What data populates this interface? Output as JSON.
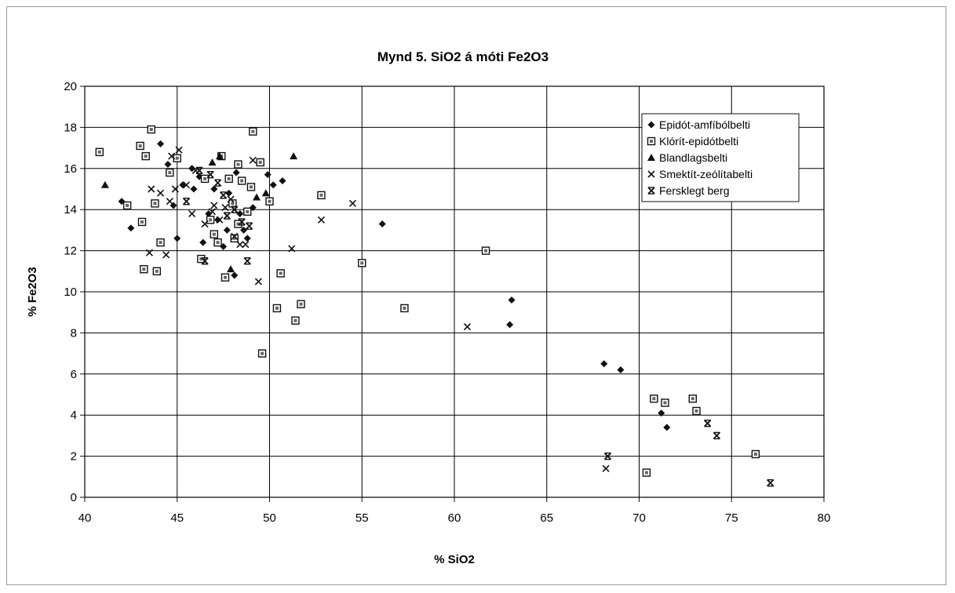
{
  "colors": {
    "ink": "#111111",
    "grid": "#000000",
    "background": "#ffffff"
  },
  "chart_data": {
    "type": "scatter",
    "title": "Mynd 5. SiO2 á móti Fe2O3",
    "xlabel": "% SiO2",
    "ylabel": "% Fe2O3",
    "xlim": [
      40,
      80
    ],
    "ylim": [
      0,
      20
    ],
    "xticks": [
      40,
      45,
      50,
      55,
      60,
      65,
      70,
      75,
      80
    ],
    "yticks": [
      0,
      2,
      4,
      6,
      8,
      10,
      12,
      14,
      16,
      18,
      20
    ],
    "grid": true,
    "legend_position": "top-right",
    "series": [
      {
        "name": "Epidót-amfíbólbelti",
        "marker": "diamond",
        "points": [
          [
            42.0,
            14.4
          ],
          [
            42.5,
            13.1
          ],
          [
            44.1,
            17.2
          ],
          [
            44.5,
            16.2
          ],
          [
            44.8,
            14.2
          ],
          [
            45.0,
            12.6
          ],
          [
            45.3,
            15.2
          ],
          [
            45.8,
            16.0
          ],
          [
            45.9,
            15.0
          ],
          [
            46.2,
            15.6
          ],
          [
            46.4,
            12.4
          ],
          [
            46.7,
            13.8
          ],
          [
            47.0,
            15.0
          ],
          [
            47.2,
            13.5
          ],
          [
            47.5,
            12.2
          ],
          [
            47.7,
            13.0
          ],
          [
            47.8,
            14.8
          ],
          [
            48.1,
            10.8
          ],
          [
            48.2,
            15.8
          ],
          [
            48.4,
            13.8
          ],
          [
            48.6,
            13.0
          ],
          [
            48.8,
            12.6
          ],
          [
            49.1,
            14.1
          ],
          [
            49.9,
            15.7
          ],
          [
            50.2,
            15.2
          ],
          [
            50.7,
            15.4
          ],
          [
            56.1,
            13.3
          ],
          [
            63.0,
            8.4
          ],
          [
            63.1,
            9.6
          ],
          [
            68.1,
            6.5
          ],
          [
            69.0,
            6.2
          ],
          [
            71.2,
            4.1
          ],
          [
            71.5,
            3.4
          ]
        ]
      },
      {
        "name": "Klórít-epidótbelti",
        "marker": "square",
        "points": [
          [
            40.8,
            16.8
          ],
          [
            42.3,
            14.2
          ],
          [
            43.0,
            17.1
          ],
          [
            43.1,
            13.4
          ],
          [
            43.2,
            11.1
          ],
          [
            43.3,
            16.6
          ],
          [
            43.6,
            17.9
          ],
          [
            43.8,
            14.3
          ],
          [
            43.9,
            11.0
          ],
          [
            44.1,
            12.4
          ],
          [
            44.6,
            15.8
          ],
          [
            45.0,
            16.5
          ],
          [
            46.3,
            11.6
          ],
          [
            46.5,
            15.5
          ],
          [
            46.8,
            13.5
          ],
          [
            47.0,
            12.8
          ],
          [
            47.2,
            12.4
          ],
          [
            47.4,
            16.6
          ],
          [
            47.6,
            10.7
          ],
          [
            47.8,
            15.5
          ],
          [
            48.0,
            14.3
          ],
          [
            48.1,
            12.6
          ],
          [
            48.3,
            13.3
          ],
          [
            48.3,
            16.2
          ],
          [
            48.5,
            15.4
          ],
          [
            48.8,
            13.9
          ],
          [
            49.0,
            15.1
          ],
          [
            49.1,
            17.8
          ],
          [
            49.5,
            16.3
          ],
          [
            49.6,
            7.0
          ],
          [
            50.0,
            14.4
          ],
          [
            50.4,
            9.2
          ],
          [
            50.6,
            10.9
          ],
          [
            51.4,
            8.6
          ],
          [
            51.7,
            9.4
          ],
          [
            52.8,
            14.7
          ],
          [
            55.0,
            11.4
          ],
          [
            57.3,
            9.2
          ],
          [
            61.7,
            12.0
          ],
          [
            70.4,
            1.2
          ],
          [
            70.8,
            4.8
          ],
          [
            71.4,
            4.6
          ],
          [
            72.9,
            4.8
          ],
          [
            73.1,
            4.2
          ],
          [
            76.3,
            2.1
          ]
        ]
      },
      {
        "name": "Blandlagsbelti",
        "marker": "triangle",
        "points": [
          [
            41.1,
            15.2
          ],
          [
            46.9,
            16.3
          ],
          [
            47.3,
            16.6
          ],
          [
            47.9,
            11.1
          ],
          [
            49.3,
            14.6
          ],
          [
            49.8,
            14.8
          ],
          [
            51.3,
            16.6
          ]
        ]
      },
      {
        "name": "Smektít-zeólítabelti",
        "marker": "x",
        "points": [
          [
            43.5,
            11.9
          ],
          [
            43.6,
            15.0
          ],
          [
            44.1,
            14.8
          ],
          [
            44.4,
            11.8
          ],
          [
            44.6,
            14.4
          ],
          [
            44.7,
            16.6
          ],
          [
            44.9,
            15.0
          ],
          [
            45.1,
            16.9
          ],
          [
            45.5,
            15.2
          ],
          [
            45.8,
            13.8
          ],
          [
            46.0,
            15.9
          ],
          [
            46.5,
            13.3
          ],
          [
            46.9,
            13.9
          ],
          [
            47.0,
            14.2
          ],
          [
            47.3,
            13.5
          ],
          [
            47.6,
            14.1
          ],
          [
            47.9,
            14.5
          ],
          [
            48.1,
            12.7
          ],
          [
            48.4,
            12.3
          ],
          [
            48.7,
            12.3
          ],
          [
            49.1,
            16.4
          ],
          [
            49.4,
            10.5
          ],
          [
            51.2,
            12.1
          ],
          [
            52.8,
            13.5
          ],
          [
            54.5,
            14.3
          ],
          [
            60.7,
            8.3
          ],
          [
            68.2,
            1.4
          ]
        ]
      },
      {
        "name": "Fersklegt berg",
        "marker": "asterisk",
        "points": [
          [
            45.5,
            14.4
          ],
          [
            46.2,
            15.9
          ],
          [
            46.5,
            11.5
          ],
          [
            46.8,
            15.7
          ],
          [
            47.2,
            15.3
          ],
          [
            47.5,
            14.7
          ],
          [
            47.7,
            13.7
          ],
          [
            48.1,
            14.0
          ],
          [
            48.5,
            13.4
          ],
          [
            48.8,
            11.5
          ],
          [
            48.9,
            13.2
          ],
          [
            68.3,
            2.0
          ],
          [
            73.7,
            3.6
          ],
          [
            74.2,
            3.0
          ],
          [
            77.1,
            0.7
          ]
        ]
      }
    ]
  }
}
